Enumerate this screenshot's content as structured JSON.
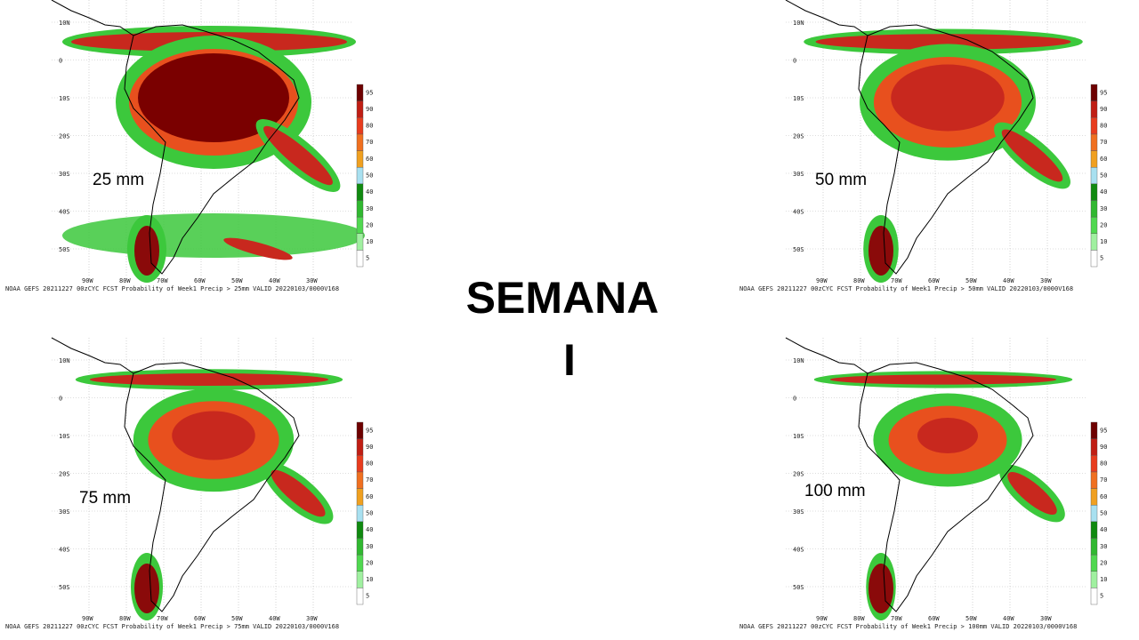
{
  "title": {
    "line1": "SEMANA",
    "line2": "I"
  },
  "panels": [
    {
      "label": "25 mm",
      "caption": "NOAA GEFS 20211227 00zCYC FCST Probability of Week1 Precip > 25mm  VALID 20220103/0000V168"
    },
    {
      "label": "50 mm",
      "caption": "NOAA GEFS 20211227 00zCYC FCST Probability of Week1 Precip > 50mm  VALID 20220103/0000V168"
    },
    {
      "label": "75 mm",
      "caption": "NOAA GEFS 20211227 00zCYC FCST Probability of Week1 Precip > 75mm  VALID 20220103/0000V168"
    },
    {
      "label": "100 mm",
      "caption": "NOAA GEFS 20211227 00zCYC FCST Probability of Week1 Precip > 100mm  VALID 20220103/0000V168"
    }
  ],
  "lat_labels": [
    "10N",
    "0",
    "10S",
    "20S",
    "30S",
    "40S",
    "50S"
  ],
  "lon_labels": [
    "90W",
    "80W",
    "70W",
    "60W",
    "50W",
    "40W",
    "30W"
  ],
  "colorbar_labels": [
    "5",
    "10",
    "20",
    "30",
    "40",
    "50",
    "60",
    "70",
    "80",
    "90",
    "95"
  ]
}
